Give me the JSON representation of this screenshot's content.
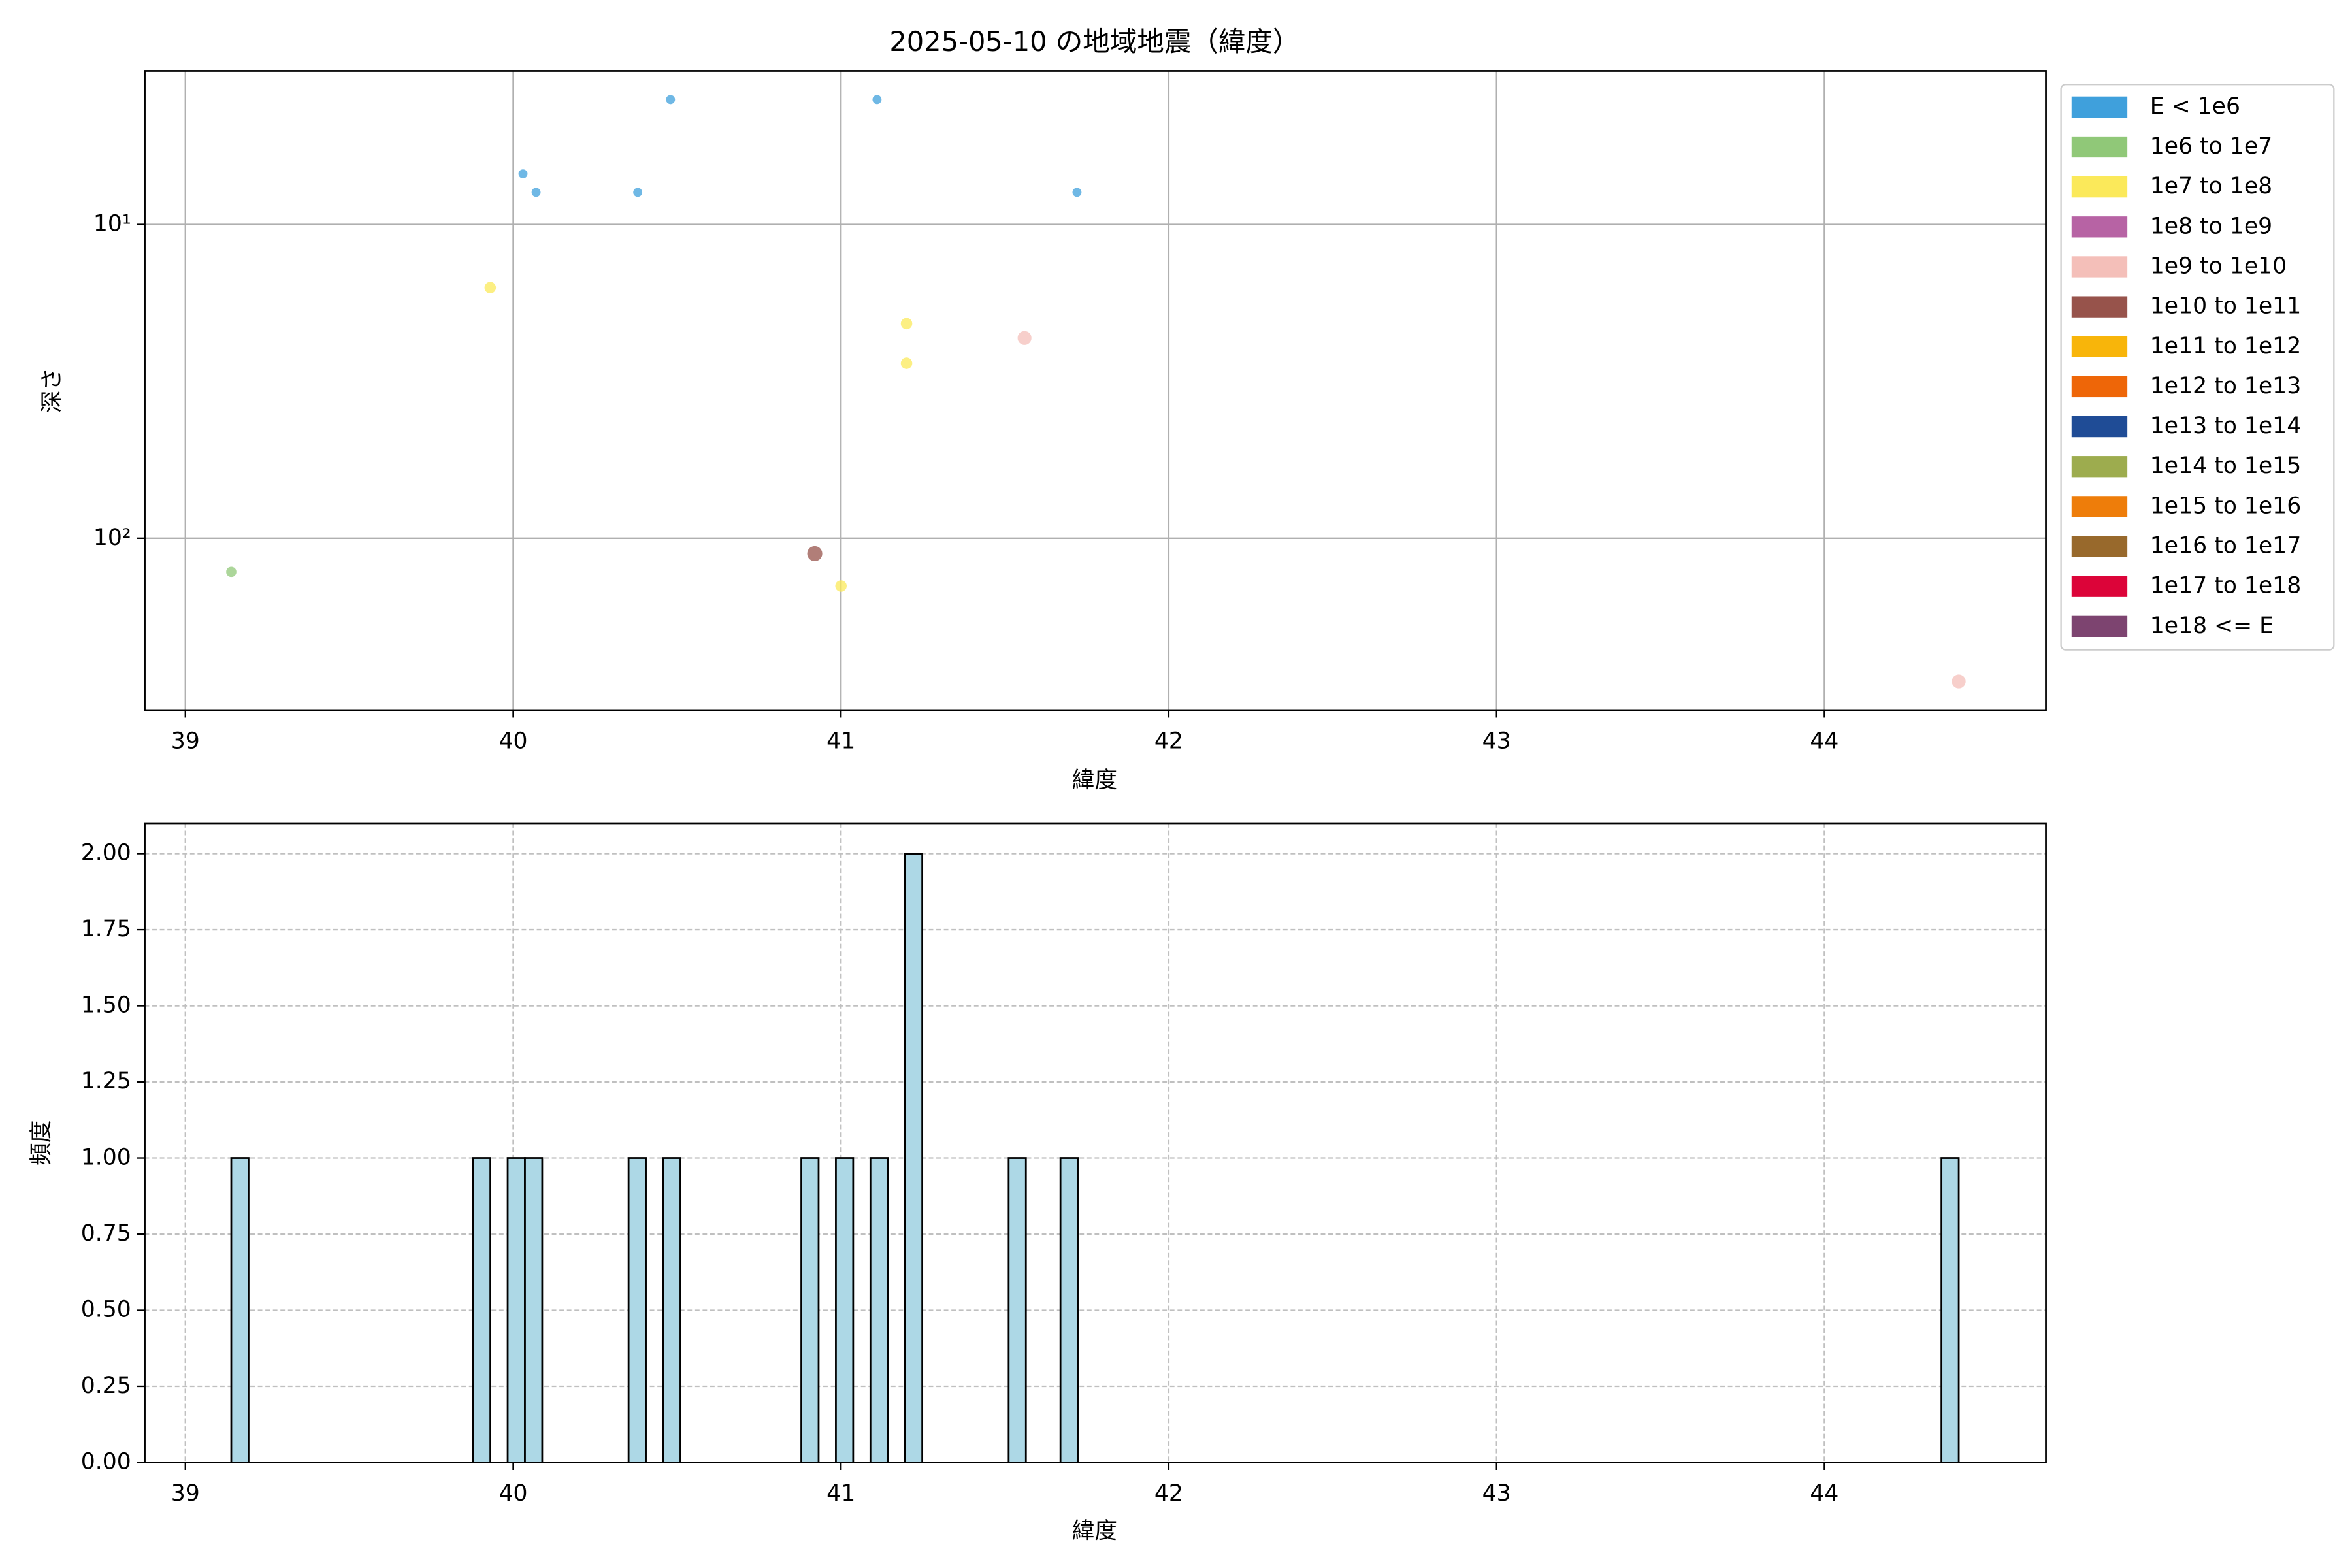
{
  "chart_data": [
    {
      "type": "scatter",
      "title": "2025-05-10 の地域地震（緯度）",
      "x_label": "緯度",
      "y_label": "深さ",
      "xlim": [
        38.876,
        44.676
      ],
      "xticks": [
        39,
        40,
        41,
        42,
        43,
        44
      ],
      "ylim": [
        3.24,
        353
      ],
      "log_y": true,
      "invert_y": true,
      "yticks": [
        {
          "value": 10,
          "label": "10¹"
        },
        {
          "value": 100,
          "label": "10²"
        }
      ],
      "grid": true,
      "grid_style": "solid",
      "legend": "outside-right",
      "series": [
        {
          "name": "E < 1e6",
          "color": "#3fa0dc",
          "x": [
            40.48,
            41.11,
            40.03,
            40.07,
            40.38,
            41.72
          ],
          "values": [
            4.0,
            4.0,
            6.9,
            7.9,
            7.9,
            7.9
          ]
        },
        {
          "name": "1e6 to 1e7",
          "color": "#90c878",
          "x": [
            39.14
          ],
          "values": [
            128
          ]
        },
        {
          "name": "1e7 to 1e8",
          "color": "#fbe95a",
          "x": [
            39.93,
            41.2,
            41.2,
            41.0
          ],
          "values": [
            15.9,
            20.7,
            27.7,
            142
          ]
        },
        {
          "name": "1e8 to 1e9",
          "color": "#b763a4",
          "x": [],
          "values": []
        },
        {
          "name": "1e9 to 1e10",
          "color": "#f4bfb9",
          "x": [
            41.56,
            44.41
          ],
          "values": [
            23,
            286
          ]
        },
        {
          "name": "1e10 to 1e11",
          "color": "#97534b",
          "x": [
            40.92
          ],
          "values": [
            112
          ]
        },
        {
          "name": "1e11 to 1e12",
          "color": "#f8b50a",
          "x": [],
          "values": []
        },
        {
          "name": "1e12 to 1e13",
          "color": "#ee6608",
          "x": [],
          "values": []
        },
        {
          "name": "1e13 to 1e14",
          "color": "#1f4c96",
          "x": [],
          "values": []
        },
        {
          "name": "1e14 to 1e15",
          "color": "#9dac4e",
          "x": [],
          "values": []
        },
        {
          "name": "1e15 to 1e16",
          "color": "#ee7d0a",
          "x": [],
          "values": []
        },
        {
          "name": "1e16 to 1e17",
          "color": "#98692c",
          "x": [],
          "values": []
        },
        {
          "name": "1e17 to 1e18",
          "color": "#dc0439",
          "x": [],
          "values": []
        },
        {
          "name": "1e18 <= E",
          "color": "#7d4470",
          "x": [],
          "values": []
        }
      ]
    },
    {
      "type": "histogram",
      "x_label": "緯度",
      "y_label": "頻度",
      "color": "#add8e6",
      "edge_color": "#000000",
      "xlim": [
        38.876,
        44.676
      ],
      "xticks": [
        39,
        40,
        41,
        42,
        43,
        44
      ],
      "ylim": [
        0,
        2.1
      ],
      "yticks": [
        {
          "value": 0,
          "label": "0.00"
        },
        {
          "value": 0.25,
          "label": "0.25"
        },
        {
          "value": 0.5,
          "label": "0.50"
        },
        {
          "value": 0.75,
          "label": "0.75"
        },
        {
          "value": 1,
          "label": "1.00"
        },
        {
          "value": 1.25,
          "label": "1.25"
        },
        {
          "value": 1.5,
          "label": "1.50"
        },
        {
          "value": 1.75,
          "label": "1.75"
        },
        {
          "value": 2,
          "label": "2.00"
        }
      ],
      "grid": true,
      "grid_style": "dashed",
      "bins": [
        39.14,
        39.1927,
        39.2454,
        39.2981,
        39.3508,
        39.4035,
        39.4562,
        39.5089,
        39.5616,
        39.6143,
        39.667,
        39.7197,
        39.7724,
        39.8251,
        39.8778,
        39.9305,
        39.9832,
        40.0359,
        40.0886,
        40.1413,
        40.194,
        40.2467,
        40.2994,
        40.3521,
        40.4048,
        40.4575,
        40.5102,
        40.5629,
        40.6156,
        40.6683,
        40.721,
        40.7737,
        40.8264,
        40.8791,
        40.9318,
        40.9845,
        41.0372,
        41.0899,
        41.1426,
        41.1953,
        41.248,
        41.3007,
        41.3534,
        41.4061,
        41.4588,
        41.5115,
        41.5642,
        41.6169,
        41.6696,
        41.7223,
        41.775,
        41.8277,
        41.8804,
        41.9331,
        41.9858,
        42.0385,
        42.0912,
        42.1439,
        42.1966,
        42.2493,
        42.302,
        42.3547,
        42.4074,
        42.4601,
        42.5128,
        42.5655,
        42.6182,
        42.6709,
        42.7236,
        42.7763,
        42.829,
        42.8817,
        42.9344,
        42.9871,
        43.0398,
        43.0925,
        43.1452,
        43.1979,
        43.2506,
        43.3033,
        43.356,
        43.4087,
        43.4614,
        43.5141,
        43.5668,
        43.6195,
        43.6722,
        43.7249,
        43.7776,
        43.8303,
        43.883,
        43.9357,
        43.9884,
        44.0411,
        44.0938,
        44.1465,
        44.1992,
        44.2519,
        44.3046,
        44.3573,
        44.41
      ],
      "values": [
        1,
        0,
        0,
        0,
        0,
        0,
        0,
        0,
        0,
        0,
        0,
        0,
        0,
        0,
        1,
        0,
        1,
        1,
        0,
        0,
        0,
        0,
        0,
        1,
        0,
        1,
        0,
        0,
        0,
        0,
        0,
        0,
        0,
        1,
        0,
        1,
        0,
        1,
        0,
        2,
        0,
        0,
        0,
        0,
        0,
        1,
        0,
        0,
        1,
        0,
        0,
        0,
        0,
        0,
        0,
        0,
        0,
        0,
        0,
        0,
        0,
        0,
        0,
        0,
        0,
        0,
        0,
        0,
        0,
        0,
        0,
        0,
        0,
        0,
        0,
        0,
        0,
        0,
        0,
        0,
        0,
        0,
        0,
        0,
        0,
        0,
        0,
        0,
        0,
        0,
        0,
        0,
        0,
        0,
        0,
        0,
        0,
        0,
        0,
        1
      ]
    }
  ]
}
